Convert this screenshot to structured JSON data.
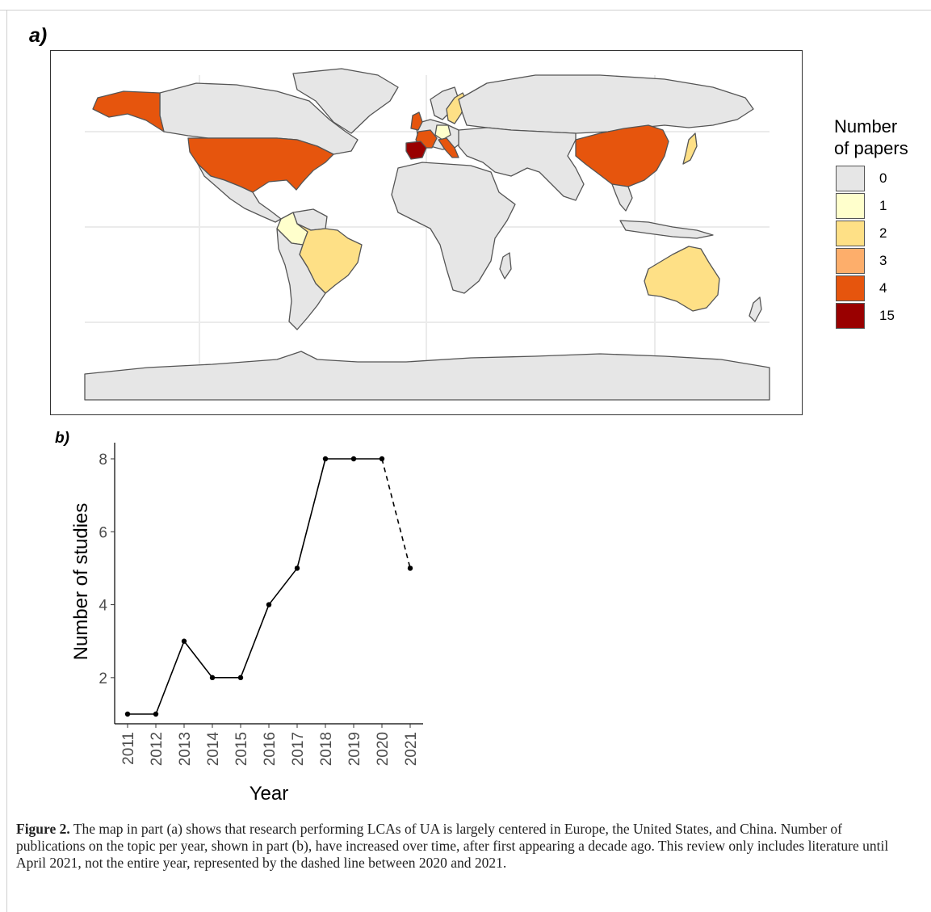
{
  "panels": {
    "a_label": "a)",
    "b_label": "b)"
  },
  "map": {
    "legend_title_line1": "Number",
    "legend_title_line2": "of papers",
    "legend": [
      {
        "label": "0",
        "color": "#e6e6e6"
      },
      {
        "label": "1",
        "color": "#ffffcc"
      },
      {
        "label": "2",
        "color": "#fee086"
      },
      {
        "label": "3",
        "color": "#fdae6b"
      },
      {
        "label": "4",
        "color": "#e6550d"
      },
      {
        "label": "15",
        "color": "#990000"
      }
    ],
    "country_colors": {
      "land": "#e6e6e6",
      "usa": "#e6550d",
      "alaska": "#e6550d",
      "china": "#e6550d",
      "italy": "#e6550d",
      "france": "#e6550d",
      "uk": "#e6550d",
      "spain": "#990000",
      "brazil": "#fee086",
      "australia": "#fee086",
      "sweden": "#fee086",
      "japan": "#fee086",
      "colombia": "#ffffcc",
      "germany": "#ffffcc"
    }
  },
  "chart_data": {
    "type": "line",
    "xlabel": "Year",
    "ylabel": "Number of studies",
    "x": [
      "2011",
      "2012",
      "2013",
      "2014",
      "2015",
      "2016",
      "2017",
      "2018",
      "2019",
      "2020",
      "2021"
    ],
    "y": [
      1,
      1,
      3,
      2,
      2,
      4,
      5,
      8,
      8,
      8,
      5
    ],
    "yticks": [
      2,
      4,
      6,
      8
    ],
    "ylim": [
      1,
      8
    ],
    "line_style": {
      "solid_until_index": 9,
      "dashed_last_segment": true
    },
    "grid": false
  },
  "caption": {
    "label": "Figure 2.",
    "text": " The map in part (a) shows that research performing LCAs of UA is largely centered in Europe, the United States, and China. Number of publications on the topic per year, shown in part (b), have increased over time, after first appearing a decade ago. This review only includes literature until April 2021, not the entire year, represented by the dashed line between 2020 and 2021."
  }
}
